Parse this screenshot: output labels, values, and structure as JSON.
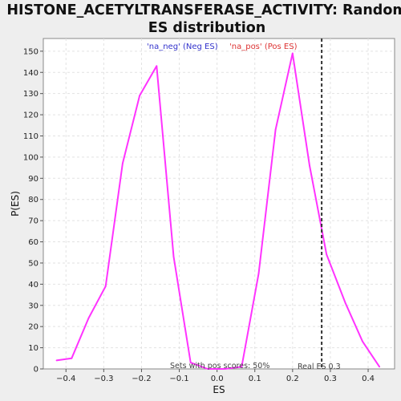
{
  "chart_data": {
    "type": "line",
    "title_lines": [
      "HISTONE_ACETYLTRANSFERASE_ACTIVITY: Random",
      "ES distribution"
    ],
    "xlabel": "ES",
    "ylabel": "P(ES)",
    "xlim": [
      -0.46,
      0.47
    ],
    "ylim": [
      0,
      156
    ],
    "x_ticks": [
      -0.4,
      -0.3,
      -0.2,
      -0.1,
      0.0,
      0.1,
      0.2,
      0.3,
      0.4
    ],
    "x_tick_labels": [
      "−0.4",
      "−0.3",
      "−0.2",
      "−0.1",
      "0.0",
      "0.1",
      "0.2",
      "0.3",
      "0.4"
    ],
    "y_ticks": [
      0,
      10,
      20,
      30,
      40,
      50,
      60,
      70,
      80,
      90,
      100,
      110,
      120,
      130,
      140,
      150
    ],
    "grid": true,
    "legend_placement": "top",
    "legend": [
      {
        "label": "'na_neg' (Neg ES)",
        "color": "#3333cc"
      },
      {
        "label": "'na_pos' (Pos ES)",
        "color": "#dd3333"
      }
    ],
    "series": [
      {
        "color": "#ff33ff",
        "x": [
          -0.425,
          -0.385,
          -0.34,
          -0.295,
          -0.25,
          -0.205,
          -0.16,
          -0.115,
          -0.07,
          -0.025,
          0.02,
          0.065,
          0.11,
          0.155,
          0.2,
          0.245,
          0.29,
          0.34,
          0.385,
          0.43
        ],
        "y": [
          4,
          5,
          24,
          39,
          97,
          129,
          143,
          53,
          3,
          0,
          0,
          1,
          45,
          113,
          149,
          96,
          54,
          31,
          13,
          1
        ]
      }
    ],
    "vline": {
      "x": 0.277,
      "label": "Real ES 0.3",
      "style": "dashed",
      "color": "#333333"
    },
    "annotation": "Sets with pos scores: 50%"
  }
}
